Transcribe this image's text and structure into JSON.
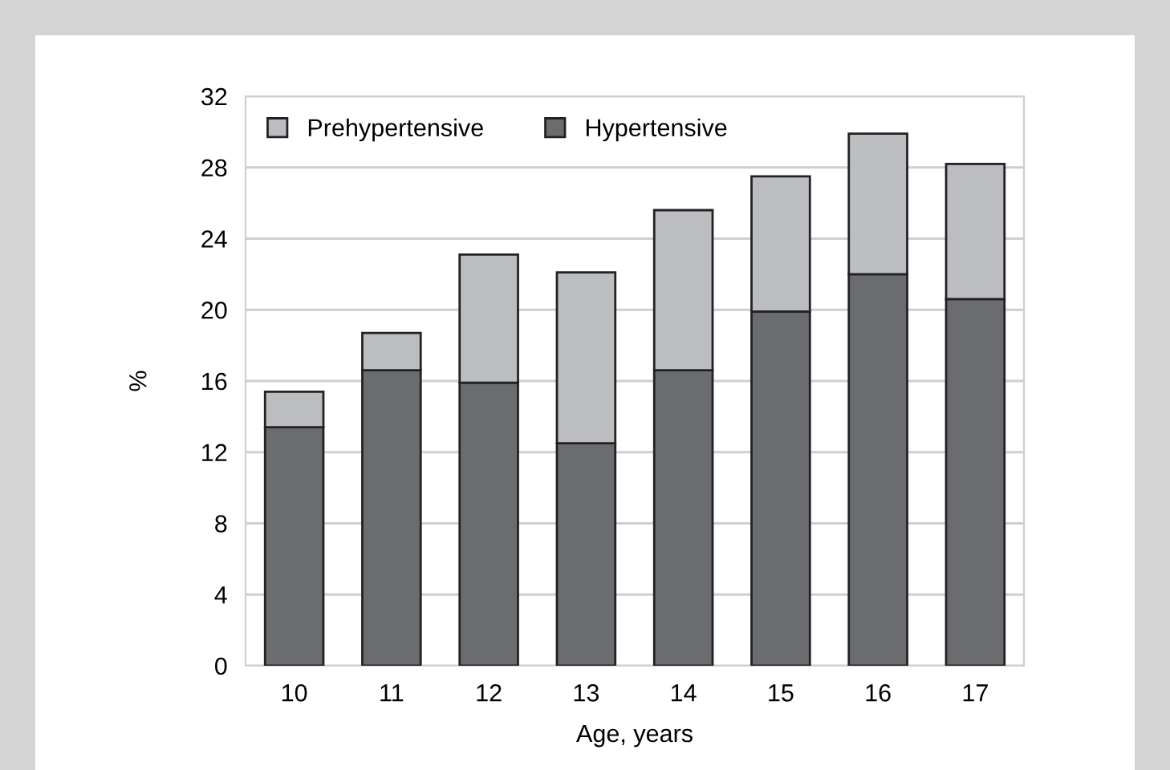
{
  "chart_data": {
    "type": "bar",
    "stacked": true,
    "xlabel": "Age, years",
    "ylabel": "%",
    "categories": [
      "10",
      "11",
      "12",
      "13",
      "14",
      "15",
      "16",
      "17"
    ],
    "series": [
      {
        "name": "Hypertensive",
        "color": "#6b6c70",
        "values": [
          13.4,
          16.6,
          15.9,
          12.5,
          16.6,
          19.9,
          22.0,
          20.6
        ]
      },
      {
        "name": "Prehypertensive",
        "color": "#bcbdc0",
        "values": [
          2.0,
          2.1,
          7.2,
          9.6,
          9.0,
          7.6,
          7.9,
          7.6
        ]
      }
    ],
    "ylim": [
      0,
      32
    ],
    "yticks": [
      0,
      4,
      8,
      12,
      16,
      20,
      24,
      28,
      32
    ],
    "grid": "y",
    "legend": "top left"
  }
}
